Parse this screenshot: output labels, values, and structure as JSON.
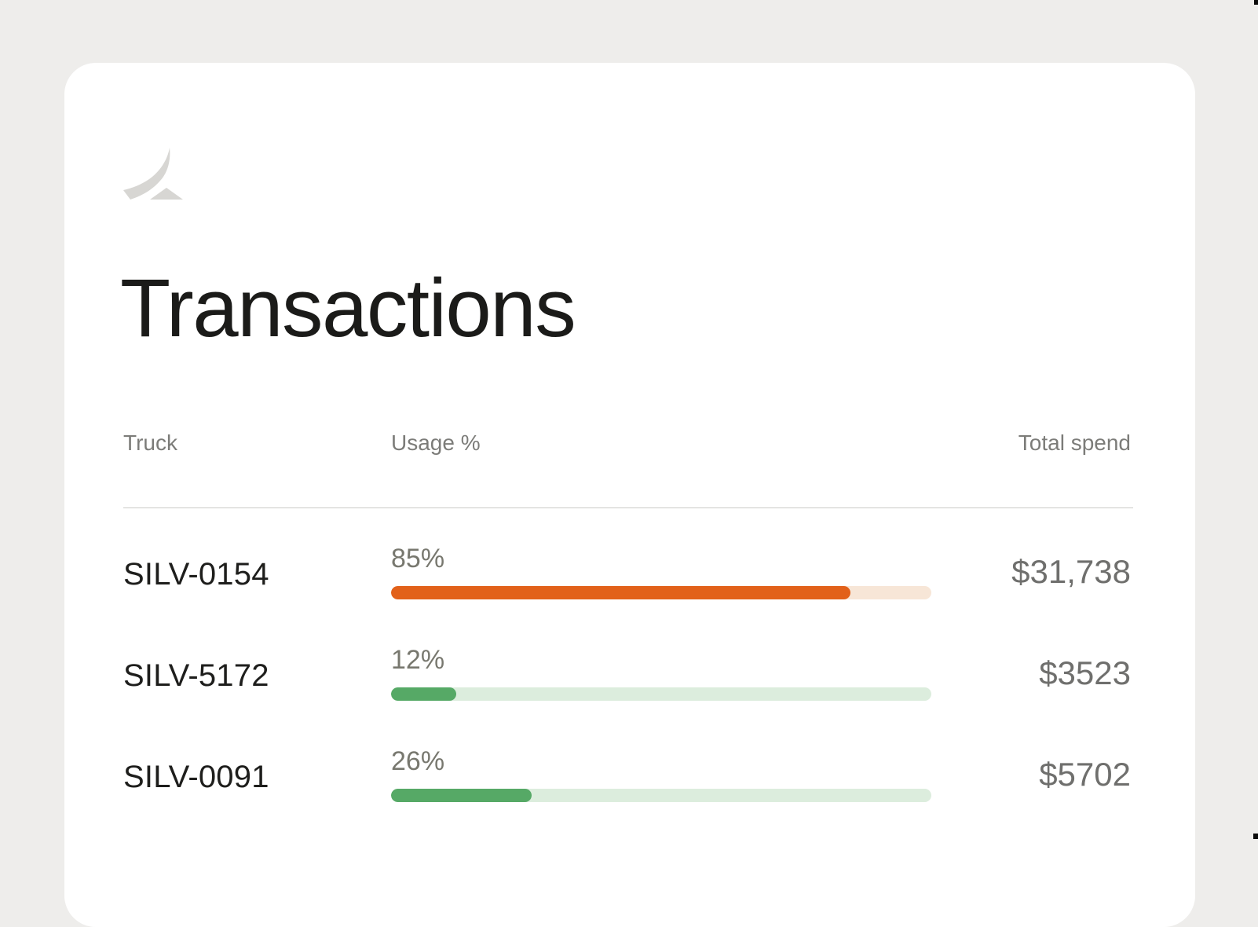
{
  "page": {
    "background_color": "#eeedeb"
  },
  "card": {
    "background_color": "#ffffff"
  },
  "brand": {
    "logo_icon": "swoosh-logo",
    "logo_color": "#d7d6d3"
  },
  "header": {
    "title": "Transactions"
  },
  "table": {
    "columns": [
      {
        "key": "truck",
        "label": "Truck"
      },
      {
        "key": "usage",
        "label": "Usage %"
      },
      {
        "key": "spend",
        "label": "Total spend"
      }
    ],
    "rows": [
      {
        "truck": "SILV-0154",
        "usage_pct": 85,
        "usage_label": "85%",
        "total_spend": "$31,738",
        "bar_fill_color": "#e2611a",
        "bar_track_color": "#f7e6d7"
      },
      {
        "truck": "SILV-5172",
        "usage_pct": 12,
        "usage_label": "12%",
        "total_spend": "$3523",
        "bar_fill_color": "#56a966",
        "bar_track_color": "#dceddd"
      },
      {
        "truck": "SILV-0091",
        "usage_pct": 26,
        "usage_label": "26%",
        "total_spend": "$5702",
        "bar_fill_color": "#56a966",
        "bar_track_color": "#dceddd"
      }
    ],
    "divider_color": "#cbcac7",
    "header_text_color": "#7c7c79",
    "value_text_color": "#6f6f6d"
  }
}
